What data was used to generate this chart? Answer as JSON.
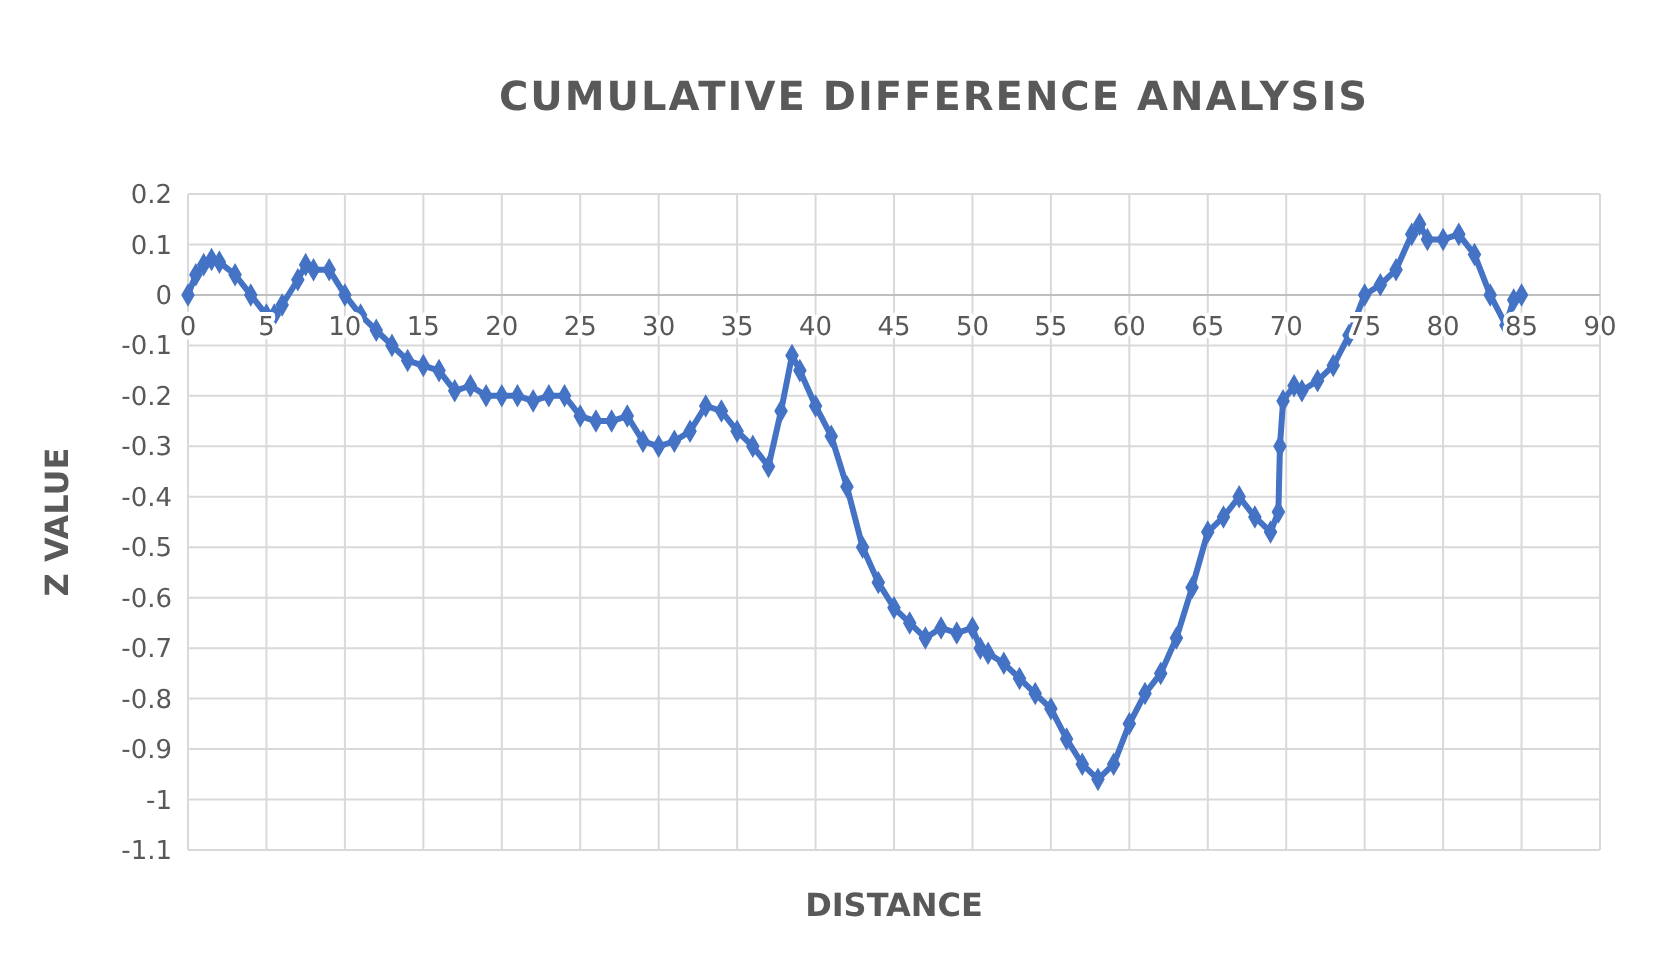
{
  "chart_data": {
    "type": "line",
    "title": "CUMULATIVE DIFFERENCE ANALYSIS",
    "xlabel": "DISTANCE",
    "ylabel": "Z VALUE",
    "x": [
      0,
      0.5,
      1,
      1.5,
      2,
      3,
      4,
      5,
      5.5,
      6,
      7,
      7.5,
      8,
      9,
      10,
      11,
      12,
      13,
      14,
      15,
      16,
      17,
      18,
      19,
      20,
      21,
      22,
      23,
      24,
      25,
      26,
      27,
      28,
      29,
      30,
      31,
      32,
      33,
      34,
      35,
      36,
      37,
      37.8,
      38.5,
      39,
      40,
      41,
      42,
      43,
      44,
      45,
      46,
      47,
      48,
      49,
      50,
      50.5,
      51,
      52,
      53,
      54,
      55,
      56,
      57,
      58,
      59,
      60,
      61,
      62,
      63,
      64,
      65,
      66,
      67,
      68,
      69,
      69.5,
      69.6,
      69.8,
      70.5,
      71,
      72,
      73,
      74,
      75,
      76,
      77,
      78,
      78.5,
      79,
      80,
      81,
      82,
      83,
      84,
      84.5,
      85
    ],
    "series": [
      {
        "color": "#4472c4",
        "values": [
          0,
          0.04,
          0.06,
          0.07,
          0.065,
          0.04,
          0,
          -0.04,
          -0.04,
          -0.02,
          0.03,
          0.06,
          0.05,
          0.05,
          0,
          -0.04,
          -0.07,
          -0.1,
          -0.13,
          -0.14,
          -0.15,
          -0.19,
          -0.18,
          -0.2,
          -0.2,
          -0.2,
          -0.21,
          -0.2,
          -0.2,
          -0.24,
          -0.25,
          -0.25,
          -0.24,
          -0.29,
          -0.3,
          -0.29,
          -0.27,
          -0.22,
          -0.23,
          -0.27,
          -0.3,
          -0.34,
          -0.23,
          -0.12,
          -0.15,
          -0.22,
          -0.28,
          -0.38,
          -0.5,
          -0.57,
          -0.62,
          -0.65,
          -0.68,
          -0.66,
          -0.67,
          -0.66,
          -0.7,
          -0.71,
          -0.73,
          -0.76,
          -0.79,
          -0.82,
          -0.88,
          -0.93,
          -0.96,
          -0.93,
          -0.85,
          -0.79,
          -0.75,
          -0.68,
          -0.58,
          -0.47,
          -0.44,
          -0.4,
          -0.44,
          -0.47,
          -0.43,
          -0.3,
          -0.21,
          -0.18,
          -0.19,
          -0.17,
          -0.14,
          -0.08,
          0,
          0.02,
          0.05,
          0.12,
          0.14,
          0.11,
          0.11,
          0.12,
          0.08,
          0,
          -0.06,
          -0.01,
          0
        ]
      }
    ],
    "xlim": [
      0,
      90
    ],
    "xticks": [
      0,
      5,
      10,
      15,
      20,
      25,
      30,
      35,
      40,
      45,
      50,
      55,
      60,
      65,
      70,
      75,
      80,
      85,
      90
    ],
    "ylim": [
      -1.1,
      0.2
    ],
    "yticks": [
      0.2,
      0.1,
      0,
      -0.1,
      -0.2,
      -0.3,
      -0.4,
      -0.5,
      -0.6,
      -0.7,
      -0.8,
      -0.9,
      -1,
      -1.1
    ],
    "grid": true,
    "marker": "diamond",
    "line_style": "solid"
  }
}
